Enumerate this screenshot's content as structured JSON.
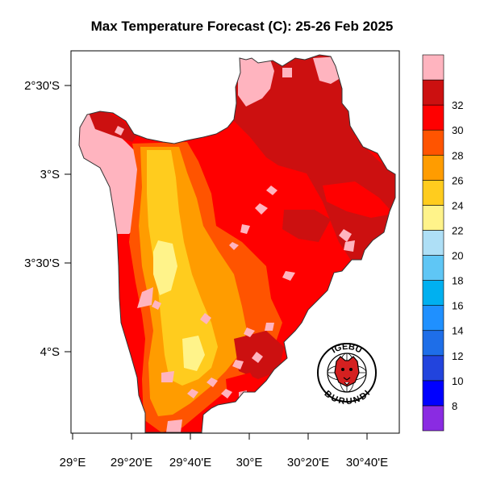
{
  "title": "Max Temperature Forecast (C): 25-26 Feb 2025",
  "lat_labels": [
    "2°30'S",
    "3°S",
    "3°30'S",
    "4°S"
  ],
  "lon_labels": [
    "29°E",
    "29°20'E",
    "29°40'E",
    "30°E",
    "30°20'E",
    "30°40'E"
  ],
  "colorbar": {
    "labels": [
      "8",
      "10",
      "12",
      "14",
      "16",
      "18",
      "20",
      "22",
      "24",
      "26",
      "28",
      "30",
      "32"
    ],
    "colors": [
      "#8a2be2",
      "#0000ff",
      "#2244dd",
      "#1e6ee8",
      "#1f90ff",
      "#00b0f0",
      "#5fc6f5",
      "#aedff6",
      "#fff38a",
      "#ffcc1e",
      "#ff9c00",
      "#ff5400",
      "#ff0000",
      "#cc1010",
      "#ffb4bf"
    ]
  },
  "logo": {
    "top_text": "IGEBU",
    "bottom_text": "BURUNDI"
  },
  "map_colors": {
    "ocean": "#ffffff",
    "pink": "#ffb4bf",
    "darkred": "#cc1010",
    "red": "#ff0000",
    "redorange": "#ff5400",
    "orange": "#ff9c00",
    "amber": "#ffcc1e",
    "yellow": "#fff38a"
  }
}
